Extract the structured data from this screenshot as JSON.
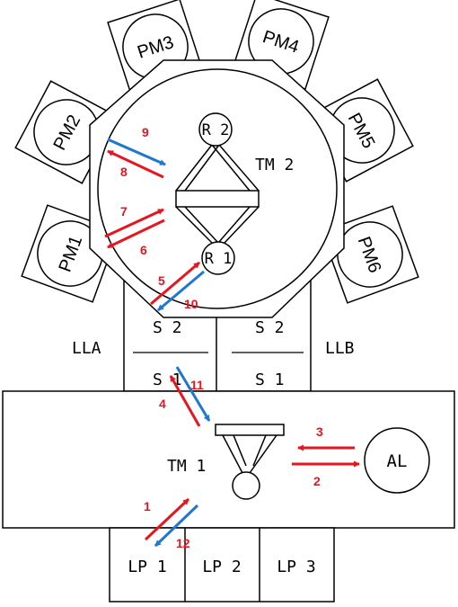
{
  "colors": {
    "line": "#000000",
    "red_arrow": "#e8141e",
    "blue_arrow": "#1e78d2",
    "step_label": "#e8141e"
  },
  "modules": {
    "pm1": "PM1",
    "pm2": "PM2",
    "pm3": "PM3",
    "pm4": "PM4",
    "pm5": "PM5",
    "pm6": "PM6"
  },
  "tm2": {
    "label": "TM 2",
    "r1": "R 1",
    "r2": "R 2"
  },
  "tm1": {
    "label": "TM 1"
  },
  "load_locks": {
    "lla": {
      "label": "LLA",
      "s1": "S 1",
      "s2": "S 2"
    },
    "llb": {
      "label": "LLB",
      "s1": "S 1",
      "s2": "S 2"
    }
  },
  "aligner": "AL",
  "load_ports": [
    "LP 1",
    "LP 2",
    "LP 3"
  ],
  "steps": [
    "1",
    "2",
    "3",
    "4",
    "5",
    "6",
    "7",
    "8",
    "9",
    "10",
    "11",
    "12"
  ]
}
